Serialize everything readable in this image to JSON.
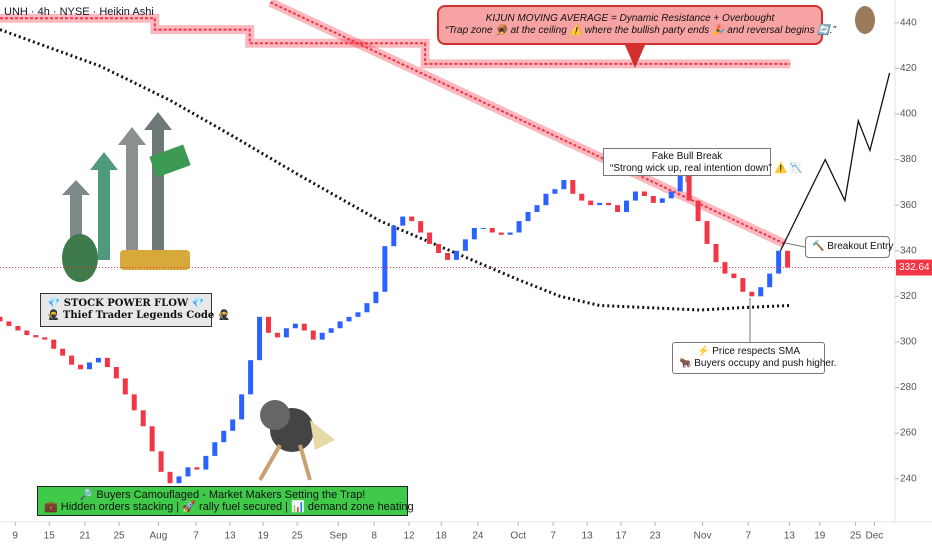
{
  "chart_data": {
    "type": "candlestick",
    "title": "UNH · 4h · NYSE · Heikin Ashi",
    "up_color": "#2962ff",
    "down_color": "#f23645",
    "open": [
      311,
      309,
      307,
      305,
      303,
      302,
      301,
      297,
      294,
      290,
      288,
      291,
      293,
      289,
      284,
      277,
      270,
      263,
      252,
      243,
      238,
      241,
      245,
      244,
      250,
      256,
      261,
      266,
      277,
      292,
      311,
      304,
      302,
      306,
      308,
      305,
      301,
      304,
      306,
      309,
      311,
      313,
      317,
      322,
      342,
      351,
      355,
      353,
      348,
      343,
      339,
      336,
      340,
      345,
      350,
      350,
      348,
      347,
      348,
      353,
      357,
      360,
      365,
      367,
      371,
      365,
      362,
      360,
      361,
      360,
      357,
      362,
      366,
      364,
      361,
      363,
      366,
      373,
      362,
      353,
      343,
      335,
      330,
      328,
      322,
      320,
      324,
      330,
      340
    ],
    "close": [
      309,
      307,
      305,
      303,
      302,
      301,
      297,
      294,
      290,
      288,
      291,
      293,
      289,
      284,
      277,
      270,
      263,
      252,
      243,
      238,
      241,
      245,
      244,
      250,
      256,
      261,
      266,
      277,
      292,
      311,
      304,
      302,
      306,
      308,
      305,
      301,
      304,
      306,
      309,
      311,
      313,
      317,
      322,
      342,
      351,
      355,
      353,
      348,
      343,
      339,
      336,
      340,
      345,
      350,
      350,
      348,
      347,
      348,
      353,
      357,
      360,
      365,
      367,
      371,
      365,
      362,
      360,
      361,
      360,
      357,
      362,
      366,
      364,
      361,
      363,
      366,
      373,
      362,
      353,
      343,
      335,
      330,
      328,
      322,
      320,
      324,
      330,
      340,
      332.64
    ],
    "overlays": [
      {
        "style": "dotted",
        "color": "#111111",
        "x": [
          0,
          11.2,
          19,
          25.7,
          33.5,
          42.5,
          50.3,
          58.1,
          62.6,
          67,
          72.6,
          78.2,
          82.7,
          88.3
        ],
        "values": [
          437,
          421,
          406,
          391,
          373,
          353,
          340,
          327,
          320,
          316,
          315,
          314,
          315,
          316
        ]
      },
      {
        "style": "band",
        "color": "#f23645",
        "x": [
          0,
          17.3,
          17.3,
          27.9,
          27.9,
          47.5,
          47.5,
          88.3
        ],
        "values": [
          442,
          442,
          437,
          437,
          431,
          431,
          422,
          422
        ]
      },
      {
        "style": "band",
        "color": "#f23645",
        "x": [
          30.2,
          87.7
        ],
        "values": [
          449,
          343
        ]
      },
      {
        "style": "solid",
        "color": "#111111",
        "x": [
          87.2,
          92.2,
          94.4,
          95.9,
          97.2,
          99.4
        ],
        "values": [
          340,
          380,
          362,
          397,
          384,
          418
        ]
      }
    ],
    "last_price": 332.64,
    "xlim": [
      0,
      100
    ],
    "ylim": [
      221,
      450
    ],
    "yticks": [
      240,
      260,
      280,
      300,
      320,
      340,
      360,
      380,
      400,
      420,
      440
    ],
    "xticks": [
      {
        "value": 1.7,
        "label": "9"
      },
      {
        "value": 5.5,
        "label": "15"
      },
      {
        "value": 9.5,
        "label": "21"
      },
      {
        "value": 13.3,
        "label": "25"
      },
      {
        "value": 17.7,
        "label": "Aug"
      },
      {
        "value": 21.9,
        "label": "7"
      },
      {
        "value": 25.7,
        "label": "13"
      },
      {
        "value": 29.4,
        "label": "19"
      },
      {
        "value": 33.2,
        "label": "25"
      },
      {
        "value": 37.8,
        "label": "Sep"
      },
      {
        "value": 41.8,
        "label": "8"
      },
      {
        "value": 45.7,
        "label": "12"
      },
      {
        "value": 49.3,
        "label": "18"
      },
      {
        "value": 53.4,
        "label": "24"
      },
      {
        "value": 57.9,
        "label": "Oct"
      },
      {
        "value": 61.8,
        "label": "7"
      },
      {
        "value": 65.6,
        "label": "13"
      },
      {
        "value": 69.4,
        "label": "17"
      },
      {
        "value": 73.2,
        "label": "23"
      },
      {
        "value": 78.5,
        "label": "Nov"
      },
      {
        "value": 83.6,
        "label": "7"
      },
      {
        "value": 88.2,
        "label": "13"
      },
      {
        "value": 91.6,
        "label": "19"
      },
      {
        "value": 95.6,
        "label": "25"
      },
      {
        "value": 97.7,
        "label": "Dec"
      }
    ],
    "annotations": [
      {
        "lines": [
          "KIJUN MOVING AVERAGE = Dynamic Resistance + Overbought",
          "“Trap zone 🪤 at the ceiling ⚠️ where the bullish party ends 🎉 and reversal begins 🔄.”"
        ]
      },
      {
        "lines": [
          "Fake Bull Break",
          "“Strong wick up, real intention down” ⚠️ 📉"
        ]
      },
      {
        "lines": [
          "🔨 Breakout Entry"
        ]
      },
      {
        "lines": [
          "⚡ Price respects SMA",
          "🐂 Buyers occupy and push higher."
        ]
      },
      {
        "lines": [
          "💎 STOCK POWER FLOW 💎",
          "🥷 Thief Trader Legends Code 🥷"
        ]
      },
      {
        "lines": [
          "🔎 Buyers Camouflaged - Market Makers Setting the Trap!",
          "💼 Hidden orders stacking | 🚀 rally fuel secured | 📊 demand zone heating"
        ]
      }
    ]
  }
}
